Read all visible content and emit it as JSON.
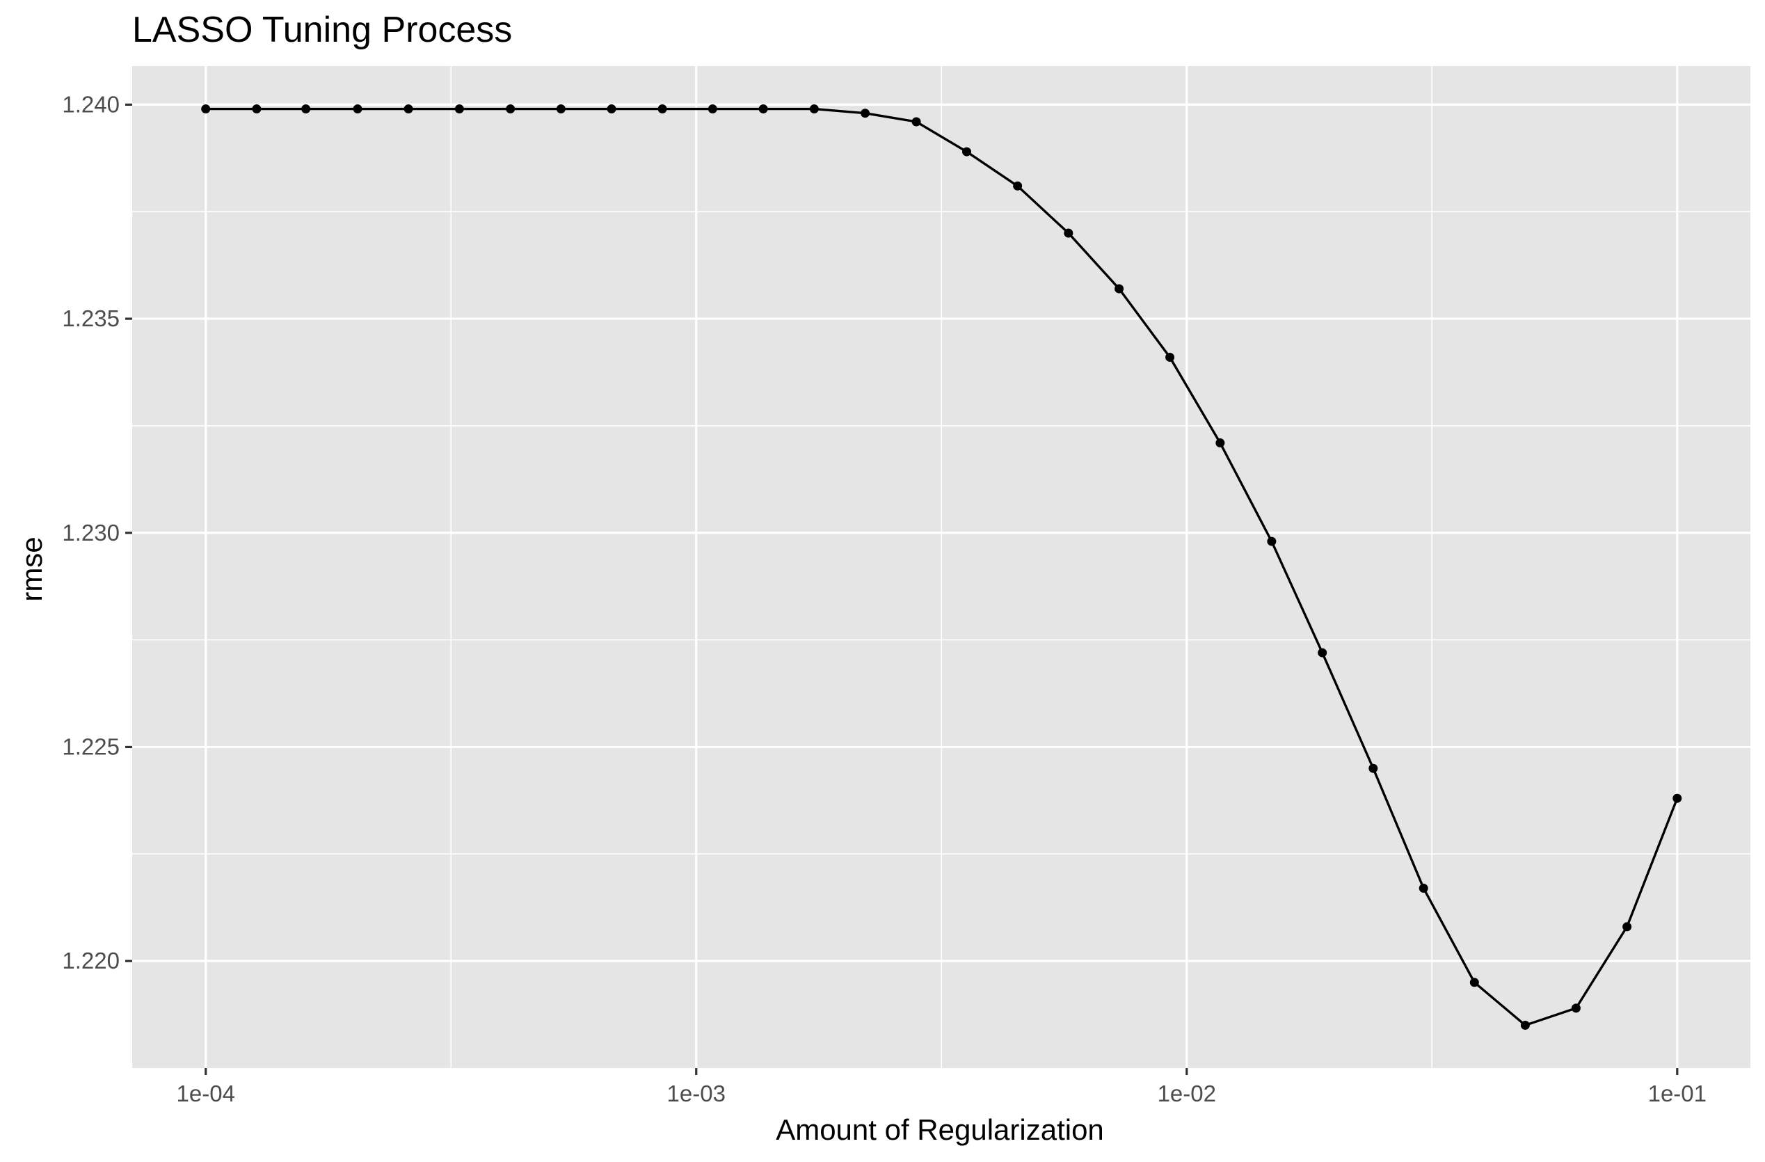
{
  "chart_data": {
    "type": "line",
    "title": "LASSO Tuning Process",
    "xlabel": "Amount of Regularization",
    "ylabel": "rmse",
    "x_scale": "log10",
    "xlim": [
      7.08e-05,
      0.141
    ],
    "ylim": [
      1.2175,
      1.2409
    ],
    "x_ticks": [
      {
        "value": 0.0001,
        "label": "1e-04"
      },
      {
        "value": 0.001,
        "label": "1e-03"
      },
      {
        "value": 0.01,
        "label": "1e-02"
      },
      {
        "value": 0.1,
        "label": "1e-01"
      }
    ],
    "y_ticks": [
      {
        "value": 1.22,
        "label": "1.220"
      },
      {
        "value": 1.225,
        "label": "1.225"
      },
      {
        "value": 1.23,
        "label": "1.230"
      },
      {
        "value": 1.235,
        "label": "1.235"
      },
      {
        "value": 1.24,
        "label": "1.240"
      }
    ],
    "grid": true,
    "background": "#e5e5e5",
    "line_color": "#000000",
    "series": [
      {
        "x": [
          0.0001,
          0.000127,
          0.00016,
          0.000204,
          0.000259,
          0.000329,
          0.000418,
          0.00053,
          0.000672,
          0.000853,
          0.00108,
          0.00137,
          0.00174,
          0.00221,
          0.00281,
          0.00356,
          0.00452,
          0.00574,
          0.00728,
          0.00924,
          0.0117,
          0.0149,
          0.0189,
          0.024,
          0.0304,
          0.0386,
          0.049,
          0.0622,
          0.079,
          0.1
        ],
        "y": [
          1.2399,
          1.2399,
          1.2399,
          1.2399,
          1.2399,
          1.2399,
          1.2399,
          1.2399,
          1.2399,
          1.2399,
          1.2399,
          1.2399,
          1.2399,
          1.2398,
          1.2396,
          1.2389,
          1.2381,
          1.237,
          1.2357,
          1.2341,
          1.2321,
          1.2298,
          1.2272,
          1.2245,
          1.2217,
          1.2195,
          1.2185,
          1.2189,
          1.2208,
          1.2238
        ]
      }
    ]
  }
}
